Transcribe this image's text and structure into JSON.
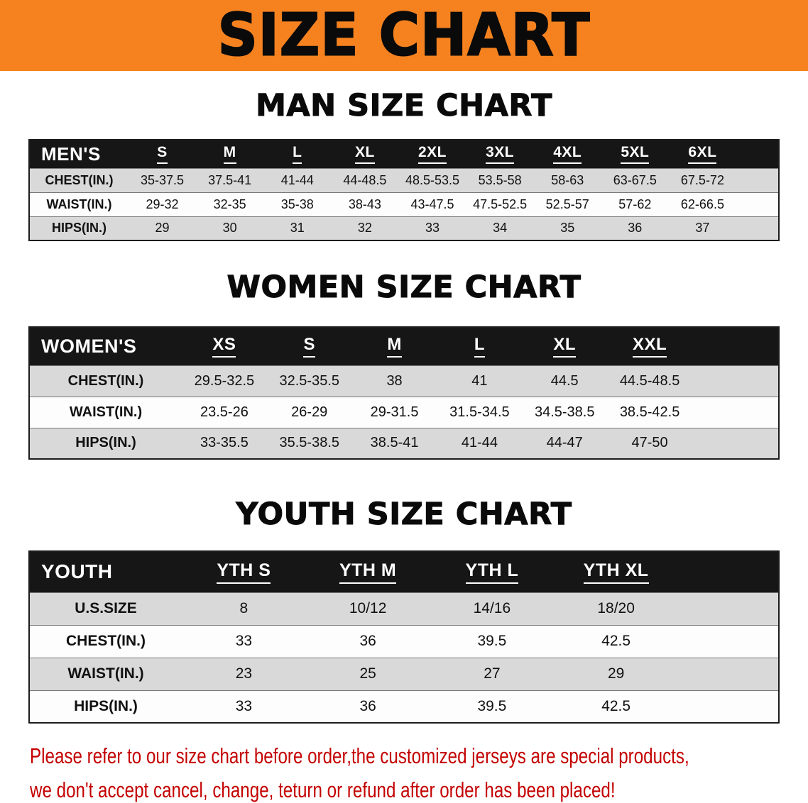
{
  "banner": {
    "title": "SIZE CHART"
  },
  "colors": {
    "banner_bg": "#f5821f",
    "table_header_bg": "#161616",
    "stripe_row_bg": "#d9d9d9",
    "notice_text": "#c40000"
  },
  "sections": [
    {
      "id": "men",
      "title": "MAN SIZE CHART",
      "corner_label": "MEN'S",
      "sizes": [
        "S",
        "M",
        "L",
        "XL",
        "2XL",
        "3XL",
        "4XL",
        "5XL",
        "6XL"
      ],
      "rows": [
        {
          "label": "CHEST(IN.)",
          "values": [
            "35-37.5",
            "37.5-41",
            "41-44",
            "44-48.5",
            "48.5-53.5",
            "53.5-58",
            "58-63",
            "63-67.5",
            "67.5-72"
          ]
        },
        {
          "label": "WAIST(IN.)",
          "values": [
            "29-32",
            "32-35",
            "35-38",
            "38-43",
            "43-47.5",
            "47.5-52.5",
            "52.5-57",
            "57-62",
            "62-66.5"
          ]
        },
        {
          "label": "HIPS(IN.)",
          "values": [
            "29",
            "30",
            "31",
            "32",
            "33",
            "34",
            "35",
            "36",
            "37"
          ]
        }
      ]
    },
    {
      "id": "women",
      "title": "WOMEN SIZE CHART",
      "corner_label": "WOMEN'S",
      "sizes": [
        "XS",
        "S",
        "M",
        "L",
        "XL",
        "XXL"
      ],
      "rows": [
        {
          "label": "CHEST(IN.)",
          "values": [
            "29.5-32.5",
            "32.5-35.5",
            "38",
            "41",
            "44.5",
            "44.5-48.5"
          ]
        },
        {
          "label": "WAIST(IN.)",
          "values": [
            "23.5-26",
            "26-29",
            "29-31.5",
            "31.5-34.5",
            "34.5-38.5",
            "38.5-42.5"
          ]
        },
        {
          "label": "HIPS(IN.)",
          "values": [
            "33-35.5",
            "35.5-38.5",
            "38.5-41",
            "41-44",
            "44-47",
            "47-50"
          ]
        }
      ]
    },
    {
      "id": "youth",
      "title": "YOUTH SIZE CHART",
      "corner_label": "YOUTH",
      "sizes": [
        "YTH S",
        "YTH M",
        "YTH L",
        "YTH XL"
      ],
      "rows": [
        {
          "label": "U.S.SIZE",
          "values": [
            "8",
            "10/12",
            "14/16",
            "18/20"
          ]
        },
        {
          "label": "CHEST(IN.)",
          "values": [
            "33",
            "36",
            "39.5",
            "42.5"
          ]
        },
        {
          "label": "WAIST(IN.)",
          "values": [
            "23",
            "25",
            "27",
            "29"
          ]
        },
        {
          "label": "HIPS(IN.)",
          "values": [
            "33",
            "36",
            "39.5",
            "42.5"
          ]
        }
      ]
    }
  ],
  "footer": {
    "line1": "Please refer to our size chart before order,the customized jerseys are special products,",
    "line2": "we don't accept cancel, change, teturn or refund after order has been placed!"
  }
}
